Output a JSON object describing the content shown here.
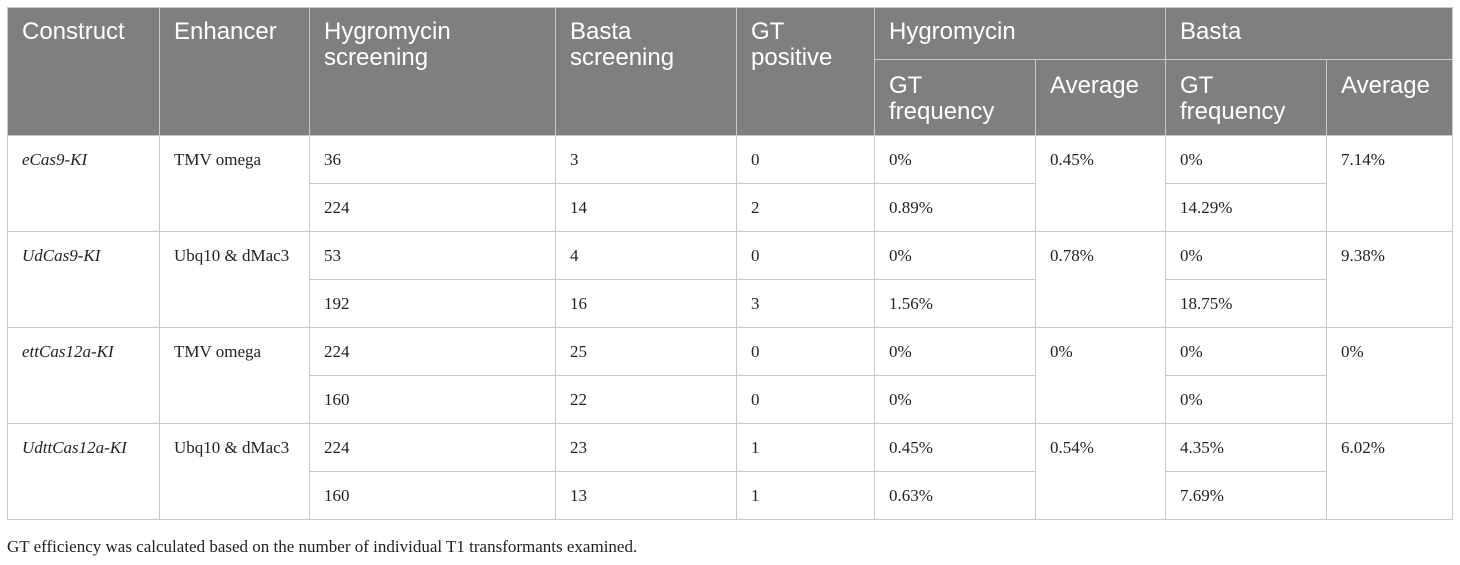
{
  "headers": {
    "construct": "Construct",
    "enhancer": "Enhancer",
    "hygromycin_screening": "Hygromycin screening",
    "basta_screening": "Basta screening",
    "gt_positive": "GT positive",
    "hygromycin_group": "Hygromycin",
    "basta_group": "Basta",
    "hyg_gt_frequency": "GT frequency",
    "hyg_average": "Average",
    "basta_gt_frequency": "GT frequency",
    "basta_average": "Average"
  },
  "rows": [
    {
      "construct": "eCas9-KI",
      "enhancer": "TMV omega",
      "hyg_average": "0.45%",
      "basta_average": "7.14%",
      "sub": [
        {
          "hygromycin_screening": "36",
          "basta_screening": "3",
          "gt_positive": "0",
          "hyg_gt_frequency": "0%",
          "basta_gt_frequency": "0%"
        },
        {
          "hygromycin_screening": "224",
          "basta_screening": "14",
          "gt_positive": "2",
          "hyg_gt_frequency": "0.89%",
          "basta_gt_frequency": "14.29%"
        }
      ]
    },
    {
      "construct": "UdCas9-KI",
      "enhancer": "Ubq10 & dMac3",
      "hyg_average": "0.78%",
      "basta_average": "9.38%",
      "sub": [
        {
          "hygromycin_screening": "53",
          "basta_screening": "4",
          "gt_positive": "0",
          "hyg_gt_frequency": "0%",
          "basta_gt_frequency": "0%"
        },
        {
          "hygromycin_screening": "192",
          "basta_screening": "16",
          "gt_positive": "3",
          "hyg_gt_frequency": "1.56%",
          "basta_gt_frequency": "18.75%"
        }
      ]
    },
    {
      "construct": "ettCas12a-KI",
      "enhancer": "TMV omega",
      "hyg_average": "0%",
      "basta_average": "0%",
      "sub": [
        {
          "hygromycin_screening": "224",
          "basta_screening": "25",
          "gt_positive": "0",
          "hyg_gt_frequency": "0%",
          "basta_gt_frequency": "0%"
        },
        {
          "hygromycin_screening": "160",
          "basta_screening": "22",
          "gt_positive": "0",
          "hyg_gt_frequency": "0%",
          "basta_gt_frequency": "0%"
        }
      ]
    },
    {
      "construct": "UdttCas12a-KI",
      "enhancer": "Ubq10 & dMac3",
      "hyg_average": "0.54%",
      "basta_average": "6.02%",
      "sub": [
        {
          "hygromycin_screening": "224",
          "basta_screening": "23",
          "gt_positive": "1",
          "hyg_gt_frequency": "0.45%",
          "basta_gt_frequency": "4.35%"
        },
        {
          "hygromycin_screening": "160",
          "basta_screening": "13",
          "gt_positive": "1",
          "hyg_gt_frequency": "0.63%",
          "basta_gt_frequency": "7.69%"
        }
      ]
    }
  ],
  "footnote": "GT efficiency was calculated based on the number of individual T1 transformants examined."
}
